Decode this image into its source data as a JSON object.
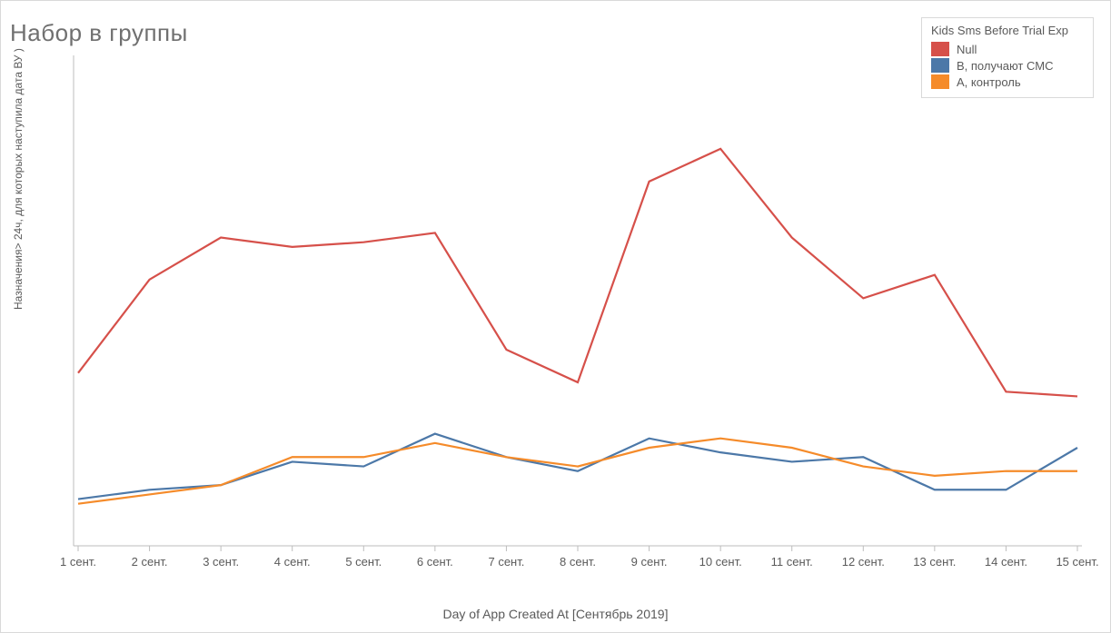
{
  "chart": {
    "type": "line",
    "title": "Набор в группы",
    "title_fontsize": 26,
    "title_color": "#707070",
    "background_color": "#ffffff",
    "border_color": "#d9d9d9",
    "x_axis": {
      "label": "Day of App Created At [Сентябрь 2019]",
      "label_fontsize": 14,
      "label_color": "#5a5a5a",
      "categories": [
        "1 сент.",
        "2 сент.",
        "3 сент.",
        "4 сент.",
        "5 сент.",
        "6 сент.",
        "7 сент.",
        "8 сент.",
        "9 сент.",
        "10 сент.",
        "11 сент.",
        "12 сент.",
        "13 сент.",
        "14 сент.",
        "15 сент."
      ],
      "tick_fontsize": 13,
      "tick_color": "#5a5a5a",
      "axis_line_color": "#bdbdbd"
    },
    "y_axis": {
      "label": "Назначения> 24ч, для которых наступила дата ВУ )",
      "label_fontsize": 12,
      "label_color": "#5a5a5a",
      "ylim": [
        0,
        105
      ],
      "axis_line_color": "#bdbdbd"
    },
    "line_width": 2.2,
    "series": [
      {
        "name": "Null",
        "color": "#d6504a",
        "values": [
          37,
          57,
          66,
          64,
          65,
          67,
          42,
          35,
          78,
          85,
          66,
          53,
          58,
          33,
          32
        ]
      },
      {
        "name": "B, получают СМС",
        "color": "#4c78a8",
        "values": [
          10,
          12,
          13,
          18,
          17,
          24,
          19,
          16,
          23,
          20,
          18,
          19,
          12,
          12,
          21
        ]
      },
      {
        "name": "A, контроль",
        "color": "#f58b2a",
        "values": [
          9,
          11,
          13,
          19,
          19,
          22,
          19,
          17,
          21,
          23,
          21,
          17,
          15,
          16,
          16
        ]
      }
    ],
    "legend": {
      "title": "Kids Sms Before Trial Exp",
      "title_fontsize": 13,
      "title_color": "#5a5a5a",
      "position": "top-right",
      "border_color": "#d9d9d9",
      "background_color": "#ffffff",
      "item_fontsize": 13
    }
  }
}
